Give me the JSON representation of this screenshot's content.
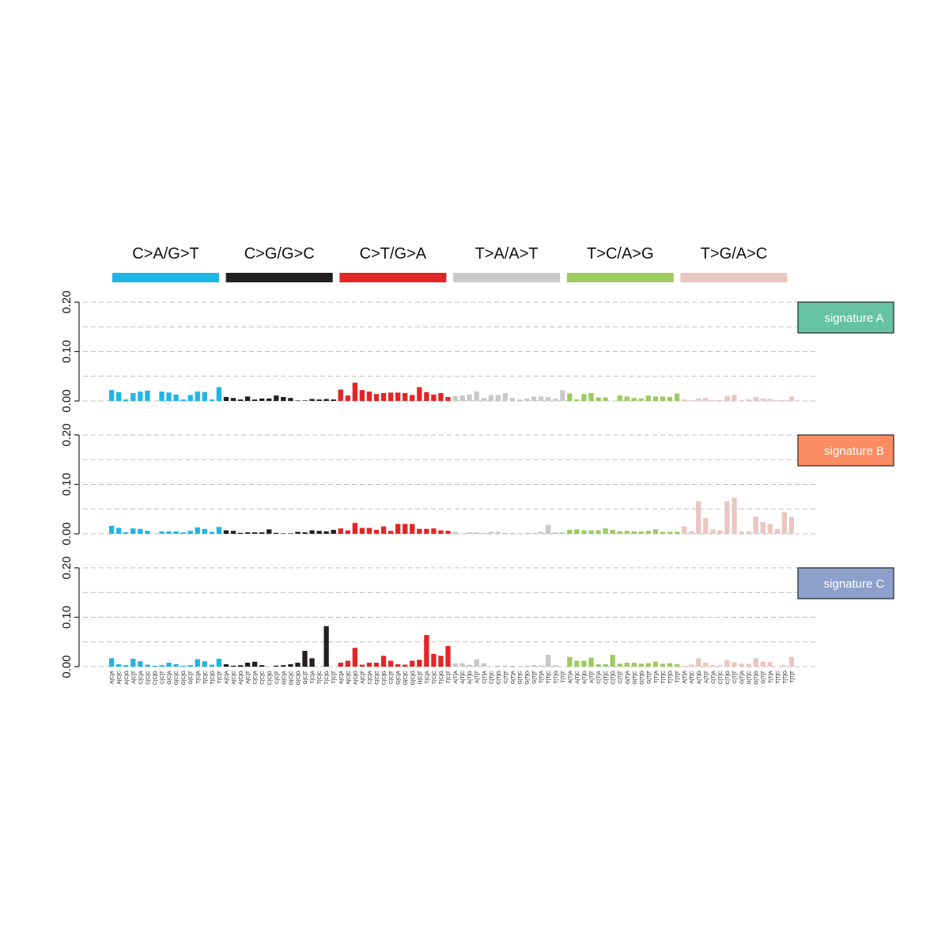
{
  "chart_data": {
    "type": "bar",
    "title": "",
    "xlabel": "",
    "ylabel": "",
    "ylim": [
      0,
      0.2
    ],
    "yticks": [
      "0.00",
      "0.10",
      "0.20"
    ],
    "grid": true,
    "mutation_classes": [
      {
        "label": "C>A/G>T",
        "color": "#1eb6e6",
        "mid": "C"
      },
      {
        "label": "C>G/G>C",
        "color": "#231f20",
        "mid": "C"
      },
      {
        "label": "C>T/G>A",
        "color": "#e32526",
        "mid": "C"
      },
      {
        "label": "T>A/A>T",
        "color": "#c8c8c8",
        "mid": "T"
      },
      {
        "label": "T>C/A>G",
        "color": "#9ccb5f",
        "mid": "T"
      },
      {
        "label": "T>G/A>C",
        "color": "#eac6c1",
        "mid": "T"
      }
    ],
    "contexts": [
      "A-A",
      "A-C",
      "A-G",
      "A-T",
      "C-A",
      "C-C",
      "C-G",
      "C-T",
      "G-A",
      "G-C",
      "G-G",
      "G-T",
      "T-A",
      "T-C",
      "T-G",
      "T-T"
    ],
    "series": [
      {
        "name": "signature A",
        "color": "#66c2a5",
        "values": [
          [
            0.022,
            0.018,
            0.003,
            0.016,
            0.019,
            0.021,
            0,
            0.019,
            0.017,
            0.013,
            0.003,
            0.012,
            0.019,
            0.018,
            0.003,
            0.028
          ],
          [
            0.008,
            0.006,
            0.003,
            0.009,
            0.003,
            0.005,
            0.005,
            0.011,
            0.008,
            0.006,
            0.001,
            0.001,
            0.004,
            0.003,
            0.004,
            0.003
          ],
          [
            0.023,
            0.011,
            0.037,
            0.022,
            0.019,
            0.014,
            0.016,
            0.017,
            0.017,
            0.016,
            0.012,
            0.028,
            0.018,
            0.013,
            0.016,
            0.008
          ],
          [
            0.01,
            0.011,
            0.013,
            0.019,
            0.006,
            0.012,
            0.012,
            0.016,
            0.006,
            0.003,
            0.005,
            0.009,
            0.009,
            0.008,
            0.005,
            0.022
          ],
          [
            0.015,
            0.003,
            0.014,
            0.016,
            0.007,
            0.007,
            0,
            0.011,
            0.009,
            0.006,
            0.005,
            0.011,
            0.009,
            0.009,
            0.008,
            0.015
          ],
          [
            0.003,
            0.002,
            0.005,
            0.006,
            0.002,
            0.002,
            0.01,
            0.012,
            0.002,
            0.003,
            0.008,
            0.005,
            0.004,
            0.002,
            0.002,
            0.009
          ]
        ]
      },
      {
        "name": "signature B",
        "color": "#fc8d62",
        "values": [
          [
            0.016,
            0.012,
            0.003,
            0.011,
            0.01,
            0.006,
            0,
            0.005,
            0.005,
            0.005,
            0.003,
            0.006,
            0.013,
            0.01,
            0.004,
            0.014
          ],
          [
            0.007,
            0.006,
            0.002,
            0.003,
            0.003,
            0.003,
            0.009,
            0.002,
            0.001,
            0.001,
            0.004,
            0.003,
            0.007,
            0.006,
            0.005,
            0.008
          ],
          [
            0.011,
            0.007,
            0.022,
            0.012,
            0.012,
            0.008,
            0.015,
            0.006,
            0.02,
            0.02,
            0.02,
            0.01,
            0.01,
            0.011,
            0.007,
            0.006
          ],
          [
            0.004,
            0.001,
            0.003,
            0.003,
            0.002,
            0.004,
            0.004,
            0.002,
            0.002,
            0.001,
            0.002,
            0.002,
            0.004,
            0.018,
            0.003,
            0.003
          ],
          [
            0.008,
            0.009,
            0.007,
            0.007,
            0.007,
            0.011,
            0.008,
            0.005,
            0.006,
            0.005,
            0.005,
            0.006,
            0.009,
            0.004,
            0.004,
            0.004
          ],
          [
            0.015,
            0.005,
            0.066,
            0.032,
            0.009,
            0.007,
            0.066,
            0.073,
            0.005,
            0.005,
            0.035,
            0.024,
            0.02,
            0.01,
            0.044,
            0.034
          ]
        ]
      },
      {
        "name": "signature C",
        "color": "#8da0cb",
        "values": [
          [
            0.017,
            0.005,
            0.003,
            0.016,
            0.011,
            0.004,
            0.002,
            0.003,
            0.008,
            0.005,
            0.002,
            0.003,
            0.015,
            0.011,
            0.004,
            0.016
          ],
          [
            0.005,
            0.002,
            0.003,
            0.008,
            0.01,
            0.003,
            0,
            0.002,
            0.003,
            0.005,
            0.008,
            0.032,
            0.017,
            0,
            0.082,
            0
          ],
          [
            0.008,
            0.012,
            0.038,
            0.004,
            0.008,
            0.008,
            0.022,
            0.012,
            0.005,
            0.004,
            0.012,
            0.014,
            0.064,
            0.026,
            0.022,
            0.042
          ],
          [
            0.007,
            0.007,
            0.004,
            0.015,
            0.007,
            0,
            0.002,
            0.002,
            0.002,
            0,
            0.002,
            0.003,
            0.002,
            0.024,
            0.003,
            0
          ],
          [
            0.02,
            0.012,
            0.012,
            0.018,
            0.005,
            0.005,
            0.024,
            0.006,
            0.008,
            0.008,
            0.006,
            0.007,
            0.01,
            0.006,
            0.007,
            0.005
          ],
          [
            0.002,
            0.004,
            0.017,
            0.008,
            0.003,
            0.003,
            0.013,
            0.009,
            0.006,
            0.006,
            0.017,
            0.01,
            0.009,
            0,
            0.003,
            0.02
          ]
        ]
      }
    ]
  }
}
